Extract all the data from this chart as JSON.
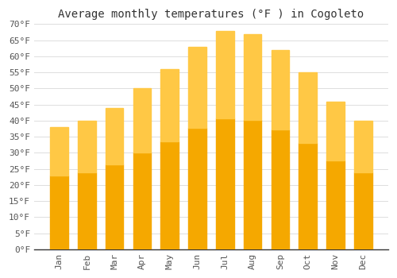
{
  "title": "Average monthly temperatures (°F ) in Cogoleto",
  "months": [
    "Jan",
    "Feb",
    "Mar",
    "Apr",
    "May",
    "Jun",
    "Jul",
    "Aug",
    "Sep",
    "Oct",
    "Nov",
    "Dec"
  ],
  "values": [
    38,
    40,
    44,
    50,
    56,
    63,
    68,
    67,
    62,
    55,
    46,
    40
  ],
  "bar_color_top": "#FFC845",
  "bar_color_bottom": "#F5A800",
  "background_color": "#FFFFFF",
  "plot_bg_color": "#FFFFFF",
  "grid_color": "#DDDDDD",
  "ylim": [
    0,
    70
  ],
  "yticks": [
    0,
    5,
    10,
    15,
    20,
    25,
    30,
    35,
    40,
    45,
    50,
    55,
    60,
    65,
    70
  ],
  "title_fontsize": 10,
  "tick_fontsize": 8,
  "font_family": "monospace",
  "bar_width": 0.65
}
